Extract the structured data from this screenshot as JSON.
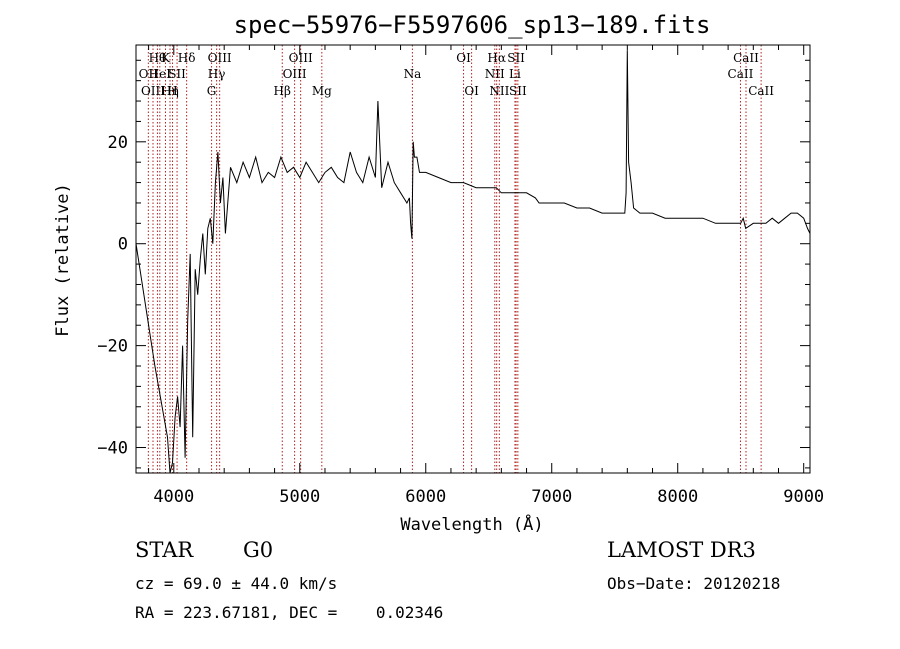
{
  "chart_data": {
    "type": "line",
    "title": "spec−55976−F5597606_sp13−189.fits",
    "xlabel": "Wavelength (Å)",
    "ylabel": "Flux (relative)",
    "xlim": [
      3700,
      9050
    ],
    "ylim": [
      -45,
      39
    ],
    "xticks": [
      4000,
      5000,
      6000,
      7000,
      8000,
      9000
    ],
    "xtick_labels": [
      "4000",
      "5000",
      "6000",
      "7000",
      "8000",
      "9000"
    ],
    "yticks": [
      20,
      0,
      -20,
      -40
    ],
    "ytick_labels": [
      "20",
      "0",
      "−20",
      "−40"
    ],
    "series": [
      {
        "name": "flux",
        "x": [
          3700,
          3850,
          3950,
          3970,
          3990,
          4010,
          4030,
          4050,
          4070,
          4090,
          4110,
          4130,
          4150,
          4170,
          4190,
          4210,
          4230,
          4250,
          4270,
          4290,
          4310,
          4330,
          4350,
          4370,
          4390,
          4410,
          4450,
          4500,
          4550,
          4600,
          4650,
          4700,
          4750,
          4800,
          4850,
          4900,
          4950,
          5000,
          5050,
          5100,
          5150,
          5200,
          5250,
          5300,
          5350,
          5400,
          5450,
          5500,
          5550,
          5600,
          5620,
          5650,
          5700,
          5750,
          5800,
          5850,
          5870,
          5880,
          5890,
          5900,
          5910,
          5930,
          5950,
          6000,
          6100,
          6200,
          6300,
          6400,
          6500,
          6560,
          6600,
          6700,
          6800,
          6870,
          6900,
          7000,
          7100,
          7200,
          7300,
          7400,
          7500,
          7580,
          7590,
          7600,
          7610,
          7630,
          7650,
          7700,
          7800,
          7900,
          8000,
          8100,
          8200,
          8300,
          8400,
          8500,
          8520,
          8540,
          8600,
          8700,
          8750,
          8800,
          8850,
          8900,
          8950,
          9000,
          9030,
          9050
        ],
        "y": [
          0,
          -24,
          -38,
          -45,
          -43,
          -34,
          -30,
          -36,
          -20,
          -42,
          -15,
          -2,
          -38,
          -5,
          -10,
          -3,
          2,
          -6,
          3,
          5,
          0,
          12,
          18,
          8,
          13,
          2,
          15,
          12,
          16,
          13,
          17,
          12,
          14,
          13,
          17,
          14,
          15,
          13,
          16,
          14,
          12,
          14,
          15,
          13,
          12,
          18,
          14,
          12,
          17,
          13,
          28,
          11,
          16,
          12,
          10,
          8,
          9,
          4,
          1,
          20,
          17,
          17,
          14,
          14,
          13,
          12,
          12,
          11,
          11,
          11,
          10,
          10,
          10,
          9,
          8,
          8,
          8,
          7,
          7,
          6,
          6,
          6,
          10,
          38,
          16,
          12,
          7,
          6,
          6,
          5,
          5,
          5,
          5,
          4,
          4,
          4,
          5,
          3,
          4,
          4,
          5,
          4,
          5,
          6,
          6,
          5,
          3,
          2
        ]
      }
    ],
    "lines": [
      {
        "x": 3798,
        "label": "OII",
        "row": 2
      },
      {
        "x": 3835,
        "label": "OIII",
        "row": 3
      },
      {
        "x": 3870,
        "label": "Hθ",
        "row": 1
      },
      {
        "x": 3889,
        "label": "HeI",
        "row": 2
      },
      {
        "x": 3934,
        "label": "K",
        "row": 1
      },
      {
        "x": 3970,
        "label": "Hη",
        "row": 3
      },
      {
        "x": 3990,
        "label": "H",
        "row": 3
      },
      {
        "x": 4026,
        "label": "SII",
        "row": 2
      },
      {
        "x": 4102,
        "label": "Hδ",
        "row": 1
      },
      {
        "x": 4300,
        "label": "G",
        "row": 3
      },
      {
        "x": 4340,
        "label": "Hγ",
        "row": 2
      },
      {
        "x": 4364,
        "label": "OIII",
        "row": 1
      },
      {
        "x": 4861,
        "label": "Hβ",
        "row": 3
      },
      {
        "x": 4959,
        "label": "OIII",
        "row": 2
      },
      {
        "x": 5007,
        "label": "OIII",
        "row": 1
      },
      {
        "x": 5175,
        "label": "Mg",
        "row": 3
      },
      {
        "x": 5894,
        "label": "Na",
        "row": 2
      },
      {
        "x": 6300,
        "label": "OI",
        "row": 1
      },
      {
        "x": 6364,
        "label": "OI",
        "row": 3
      },
      {
        "x": 6548,
        "label": "NII",
        "row": 2
      },
      {
        "x": 6563,
        "label": "Hα",
        "row": 1
      },
      {
        "x": 6584,
        "label": "NII",
        "row": 3
      },
      {
        "x": 6708,
        "label": "Li",
        "row": 2
      },
      {
        "x": 6717,
        "label": "SII",
        "row": 1
      },
      {
        "x": 6731,
        "label": "SII",
        "row": 3
      },
      {
        "x": 8498,
        "label": "CaII",
        "row": 2
      },
      {
        "x": 8542,
        "label": "CaII",
        "row": 1
      },
      {
        "x": 8662,
        "label": "CaII",
        "row": 3
      }
    ]
  },
  "info": {
    "object_class": "STAR",
    "subclass": "G0",
    "survey": "LAMOST DR3",
    "cz": "cz = 69.0 ± 44.0 km/s",
    "obs_date": "Obs−Date: 20120218",
    "coords": "RA = 223.67181, DEC =    0.02346"
  },
  "colors": {
    "spectrum": "#000000",
    "line_marker": "#b22222",
    "axes": "#000000",
    "background": "#ffffff"
  }
}
